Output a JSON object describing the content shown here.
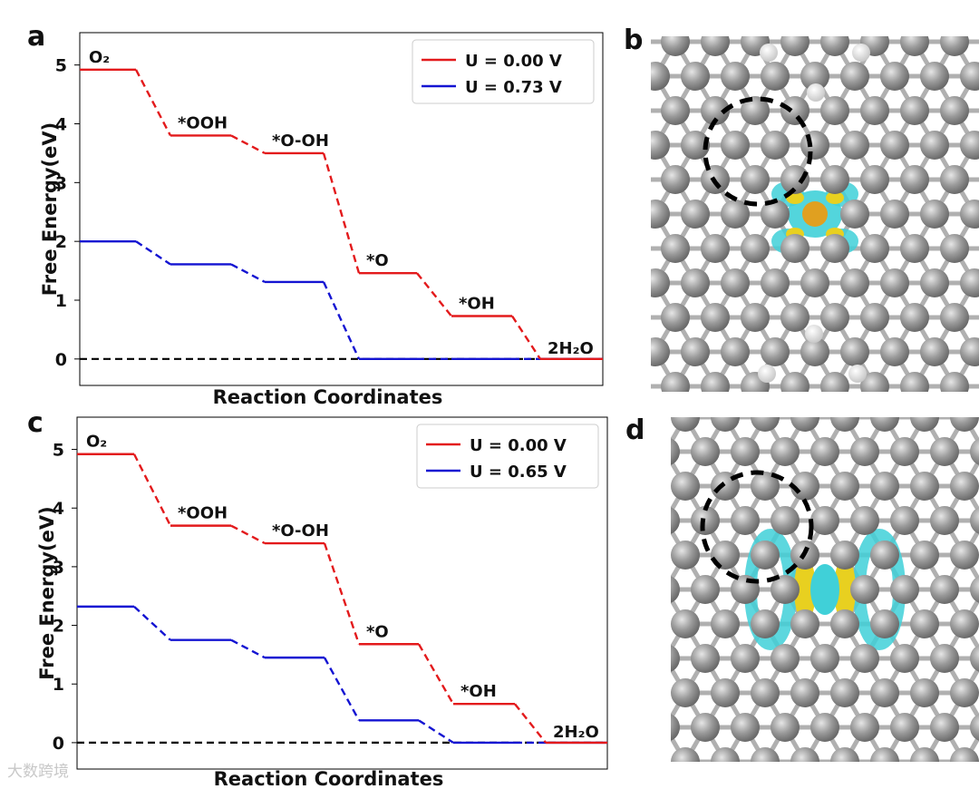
{
  "panels": {
    "a": {
      "letter": "a"
    },
    "b": {
      "letter": "b"
    },
    "c": {
      "letter": "c"
    },
    "d": {
      "letter": "d"
    }
  },
  "watermark": "大数跨境",
  "colors": {
    "red": "#e31a1c",
    "blue": "#1414d2",
    "zero": "#000000",
    "gray_atom": "#8c8c8c",
    "cyan": "#40d0d8",
    "yellow": "#e8d020"
  },
  "chart_data": [
    {
      "panel": "a",
      "type": "line",
      "xlabel": "Reaction Coordinates",
      "ylabel": "Free Energy(eV)",
      "ylim": [
        -0.45,
        5.55
      ],
      "yticks": [
        0,
        1,
        2,
        3,
        4,
        5
      ],
      "states": [
        "O2",
        "*OOH",
        "*O-OH",
        "*O",
        "*OH",
        "2H2O"
      ],
      "state_labels": [
        "O₂",
        "*OOH",
        "*O-OH",
        "*O",
        "*OH",
        "2H₂O"
      ],
      "series": [
        {
          "name": "U = 0.00 V",
          "values": [
            4.92,
            3.8,
            3.5,
            1.46,
            0.73,
            0.0
          ]
        },
        {
          "name": "U = 0.73 V",
          "values": [
            2.0,
            1.61,
            1.31,
            0.0,
            0.0,
            0.0
          ]
        }
      ],
      "legend": "top-right"
    },
    {
      "panel": "c",
      "type": "line",
      "xlabel": "Reaction Coordinates",
      "ylabel": "Free Energy(eV)",
      "ylim": [
        -0.45,
        5.55
      ],
      "yticks": [
        0,
        1,
        2,
        3,
        4,
        5
      ],
      "states": [
        "O2",
        "*OOH",
        "*O-OH",
        "*O",
        "*OH",
        "2H2O"
      ],
      "state_labels": [
        "O₂",
        "*OOH",
        "*O-OH",
        "*O",
        "*OH",
        "2H₂O"
      ],
      "series": [
        {
          "name": "U = 0.00 V",
          "values": [
            4.92,
            3.7,
            3.4,
            1.68,
            0.66,
            0.0
          ]
        },
        {
          "name": "U = 0.65 V",
          "values": [
            2.32,
            1.75,
            1.45,
            0.38,
            0.0,
            0.0
          ]
        }
      ],
      "legend": "top-right"
    }
  ]
}
